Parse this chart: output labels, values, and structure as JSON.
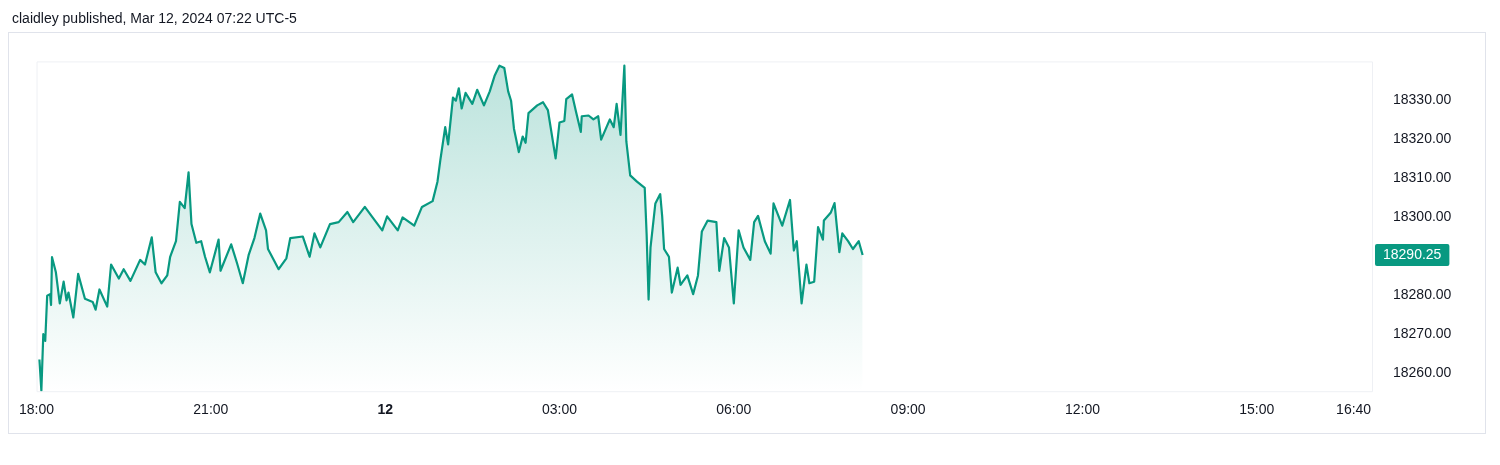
{
  "chart_data": {
    "type": "area",
    "title": "claidley published, Mar 12, 2024 07:22 UTC-5",
    "x": [
      "2024-03-11T18:03",
      "2024-03-11T18:05",
      "2024-03-11T18:07",
      "2024-03-11T18:09",
      "2024-03-11T18:11",
      "2024-03-11T18:14",
      "2024-03-11T18:15",
      "2024-03-11T18:16",
      "2024-03-11T18:20",
      "2024-03-11T18:24",
      "2024-03-11T18:28",
      "2024-03-11T18:31",
      "2024-03-11T18:33",
      "2024-03-11T18:38",
      "2024-03-11T18:43",
      "2024-03-11T18:50",
      "2024-03-11T18:58",
      "2024-03-11T19:01",
      "2024-03-11T19:05",
      "2024-03-11T19:13",
      "2024-03-11T19:17",
      "2024-03-11T19:25",
      "2024-03-11T19:30",
      "2024-03-11T19:37",
      "2024-03-11T19:47",
      "2024-03-11T19:52",
      "2024-03-11T19:59",
      "2024-03-11T20:03",
      "2024-03-11T20:09",
      "2024-03-11T20:15",
      "2024-03-11T20:18",
      "2024-03-11T20:24",
      "2024-03-11T20:28",
      "2024-03-11T20:33",
      "2024-03-11T20:37",
      "2024-03-11T20:40",
      "2024-03-11T20:45",
      "2024-03-11T20:50",
      "2024-03-11T20:54",
      "2024-03-11T20:59",
      "2024-03-11T21:08",
      "2024-03-11T21:10",
      "2024-03-11T21:21",
      "2024-03-11T21:27",
      "2024-03-11T21:33",
      "2024-03-11T21:39",
      "2024-03-11T21:45",
      "2024-03-11T21:51",
      "2024-03-11T21:57",
      "2024-03-11T21:59",
      "2024-03-11T22:10",
      "2024-03-11T22:18",
      "2024-03-11T22:22",
      "2024-03-11T22:35",
      "2024-03-11T22:42",
      "2024-03-11T22:47",
      "2024-03-11T22:53",
      "2024-03-11T23:03",
      "2024-03-11T23:12",
      "2024-03-11T23:21",
      "2024-03-11T23:27",
      "2024-03-11T23:39",
      "2024-03-11T23:47",
      "2024-03-11T23:57",
      "2024-03-12T00:02",
      "2024-03-12T00:13",
      "2024-03-12T00:18",
      "2024-03-12T00:30",
      "2024-03-12T00:38",
      "2024-03-12T00:49",
      "2024-03-12T00:54",
      "2024-03-12T00:57",
      "2024-03-12T01:02",
      "2024-03-12T01:05",
      "2024-03-12T01:10",
      "2024-03-12T01:13",
      "2024-03-12T01:16",
      "2024-03-12T01:19",
      "2024-03-12T01:23",
      "2024-03-12T01:30",
      "2024-03-12T01:35",
      "2024-03-12T01:42",
      "2024-03-12T01:48",
      "2024-03-12T01:53",
      "2024-03-12T01:58",
      "2024-03-12T02:03",
      "2024-03-12T02:07",
      "2024-03-12T02:10",
      "2024-03-12T02:13",
      "2024-03-12T02:18",
      "2024-03-12T02:22",
      "2024-03-12T02:25",
      "2024-03-12T02:28",
      "2024-03-12T02:37",
      "2024-03-12T02:43",
      "2024-03-12T02:48",
      "2024-03-12T02:56",
      "2024-03-12T03:00",
      "2024-03-12T03:05",
      "2024-03-12T03:07",
      "2024-03-12T03:13",
      "2024-03-12T03:17",
      "2024-03-12T03:22",
      "2024-03-12T03:23",
      "2024-03-12T03:30",
      "2024-03-12T03:35",
      "2024-03-12T03:40",
      "2024-03-12T03:43",
      "2024-03-12T03:52",
      "2024-03-12T03:56",
      "2024-03-12T03:59",
      "2024-03-12T04:03",
      "2024-03-12T04:07",
      "2024-03-12T04:09",
      "2024-03-12T04:13",
      "2024-03-12T04:20",
      "2024-03-12T04:28",
      "2024-03-12T04:30",
      "2024-03-12T04:32",
      "2024-03-12T04:34",
      "2024-03-12T04:39",
      "2024-03-12T04:44",
      "2024-03-12T04:46",
      "2024-03-12T04:48",
      "2024-03-12T04:53",
      "2024-03-12T04:56",
      "2024-03-12T05:02",
      "2024-03-12T05:05",
      "2024-03-12T05:12",
      "2024-03-12T05:18",
      "2024-03-12T05:23",
      "2024-03-12T05:27",
      "2024-03-12T05:33",
      "2024-03-12T05:42",
      "2024-03-12T05:45",
      "2024-03-12T05:50",
      "2024-03-12T05:55",
      "2024-03-12T06:00",
      "2024-03-12T06:05",
      "2024-03-12T06:10",
      "2024-03-12T06:17",
      "2024-03-12T06:21",
      "2024-03-12T06:25",
      "2024-03-12T06:32",
      "2024-03-12T06:38",
      "2024-03-12T06:41",
      "2024-03-12T06:50",
      "2024-03-12T06:58",
      "2024-03-12T07:02",
      "2024-03-12T07:05",
      "2024-03-12T07:10",
      "2024-03-12T07:15",
      "2024-03-12T07:18",
      "2024-03-12T07:23",
      "2024-03-12T07:27",
      "2024-03-12T07:32",
      "2024-03-12T07:33",
      "2024-03-12T07:40",
      "2024-03-12T07:44",
      "2024-03-12T07:49",
      "2024-03-12T07:52",
      "2024-03-12T07:58",
      "2024-03-12T08:03",
      "2024-03-12T08:09",
      "2024-03-12T08:13"
    ],
    "series": [
      {
        "color": "#089981",
        "values": [
          18263.4,
          18255.4,
          18269.9,
          18268.2,
          18279.8,
          18280.2,
          18277.4,
          18289.7,
          18285.8,
          18277.8,
          18283.4,
          18278.6,
          18280.6,
          18274.2,
          18285.4,
          18279,
          18278.2,
          18276.2,
          18281.4,
          18277,
          18287.8,
          18284.2,
          18286.6,
          18283.6,
          18289,
          18287.8,
          18294.8,
          18285.8,
          18283,
          18285,
          18289.8,
          18293.8,
          18303.9,
          18302.3,
          18311.5,
          18298.2,
          18293.4,
          18293.8,
          18289.8,
          18285.8,
          18294.2,
          18286.2,
          18293,
          18288.2,
          18283,
          18290.2,
          18294.6,
          18300.9,
          18296.6,
          18291.8,
          18286.6,
          18289.4,
          18294.6,
          18295,
          18289.8,
          18295.8,
          18292.2,
          18298.2,
          18298.7,
          18301.3,
          18298.7,
          18302.6,
          18299.9,
          18296.6,
          18300.2,
          18296.6,
          18299.9,
          18297.8,
          18302.6,
          18304.1,
          18309.1,
          18314.7,
          18323.1,
          18318.7,
          18330.7,
          18329.9,
          18333.1,
          18327.9,
          18331.9,
          18329.1,
          18332.7,
          18328.7,
          18332.3,
          18336.3,
          18338.9,
          18338.3,
          18332.3,
          18329.9,
          18322.7,
          18316.7,
          18320.7,
          18319.1,
          18326.7,
          18328.7,
          18329.5,
          18327.5,
          18315.1,
          18324.3,
          18324.7,
          18330.3,
          18331.5,
          18327.1,
          18321.9,
          18325.9,
          18326.1,
          18325.1,
          18325.9,
          18319.9,
          18325.1,
          18323.1,
          18329.1,
          18321.1,
          18338.9,
          18319.5,
          18310.7,
          18309.1,
          18307.5,
          18295.4,
          18278.8,
          18292.2,
          18303.5,
          18305.9,
          18300.3,
          18291.8,
          18289.8,
          18280.6,
          18287,
          18282.6,
          18285,
          18280.2,
          18285,
          18296.3,
          18299.1,
          18298.7,
          18286.2,
          18294.6,
          18292.2,
          18277.8,
          18296.6,
          18292.2,
          18289,
          18298.7,
          18300.3,
          18293.8,
          18290.6,
          18303.5,
          18297.8,
          18304.4,
          18291.4,
          18293.8,
          18277.8,
          18287.8,
          18283,
          18283.4,
          18297.4,
          18294.2,
          18299.1,
          18301.1,
          18303.6,
          18291,
          18295.8,
          18293.8,
          18291.8,
          18293.8,
          18290.25
        ]
      }
    ],
    "xlim": [
      "2024-03-11T18:00",
      "2024-03-12T17:00"
    ],
    "xticks": [
      {
        "value": "2024-03-11T18:00",
        "label": "18:00"
      },
      {
        "value": "2024-03-11T21:00",
        "label": "21:00"
      },
      {
        "value": "2024-03-12T00:00",
        "label": "12"
      },
      {
        "value": "2024-03-12T03:00",
        "label": "03:00"
      },
      {
        "value": "2024-03-12T06:00",
        "label": "06:00"
      },
      {
        "value": "2024-03-12T09:00",
        "label": "09:00"
      },
      {
        "value": "2024-03-12T12:00",
        "label": "12:00"
      },
      {
        "value": "2024-03-12T15:00",
        "label": "15:00"
      },
      {
        "value": "2024-03-12T16:40",
        "label": "16:40"
      }
    ],
    "ylim": [
      18255,
      18340
    ],
    "yticks": [
      {
        "value": 18260,
        "label": "18260.00"
      },
      {
        "value": 18270,
        "label": "18270.00"
      },
      {
        "value": 18280,
        "label": "18280.00"
      },
      {
        "value": 18300,
        "label": "18300.00"
      },
      {
        "value": 18310,
        "label": "18310.00"
      },
      {
        "value": 18320,
        "label": "18320.00"
      },
      {
        "value": 18330,
        "label": "18330.00"
      }
    ],
    "annotations": [
      "18290.25"
    ],
    "grid": false,
    "legend": false
  }
}
